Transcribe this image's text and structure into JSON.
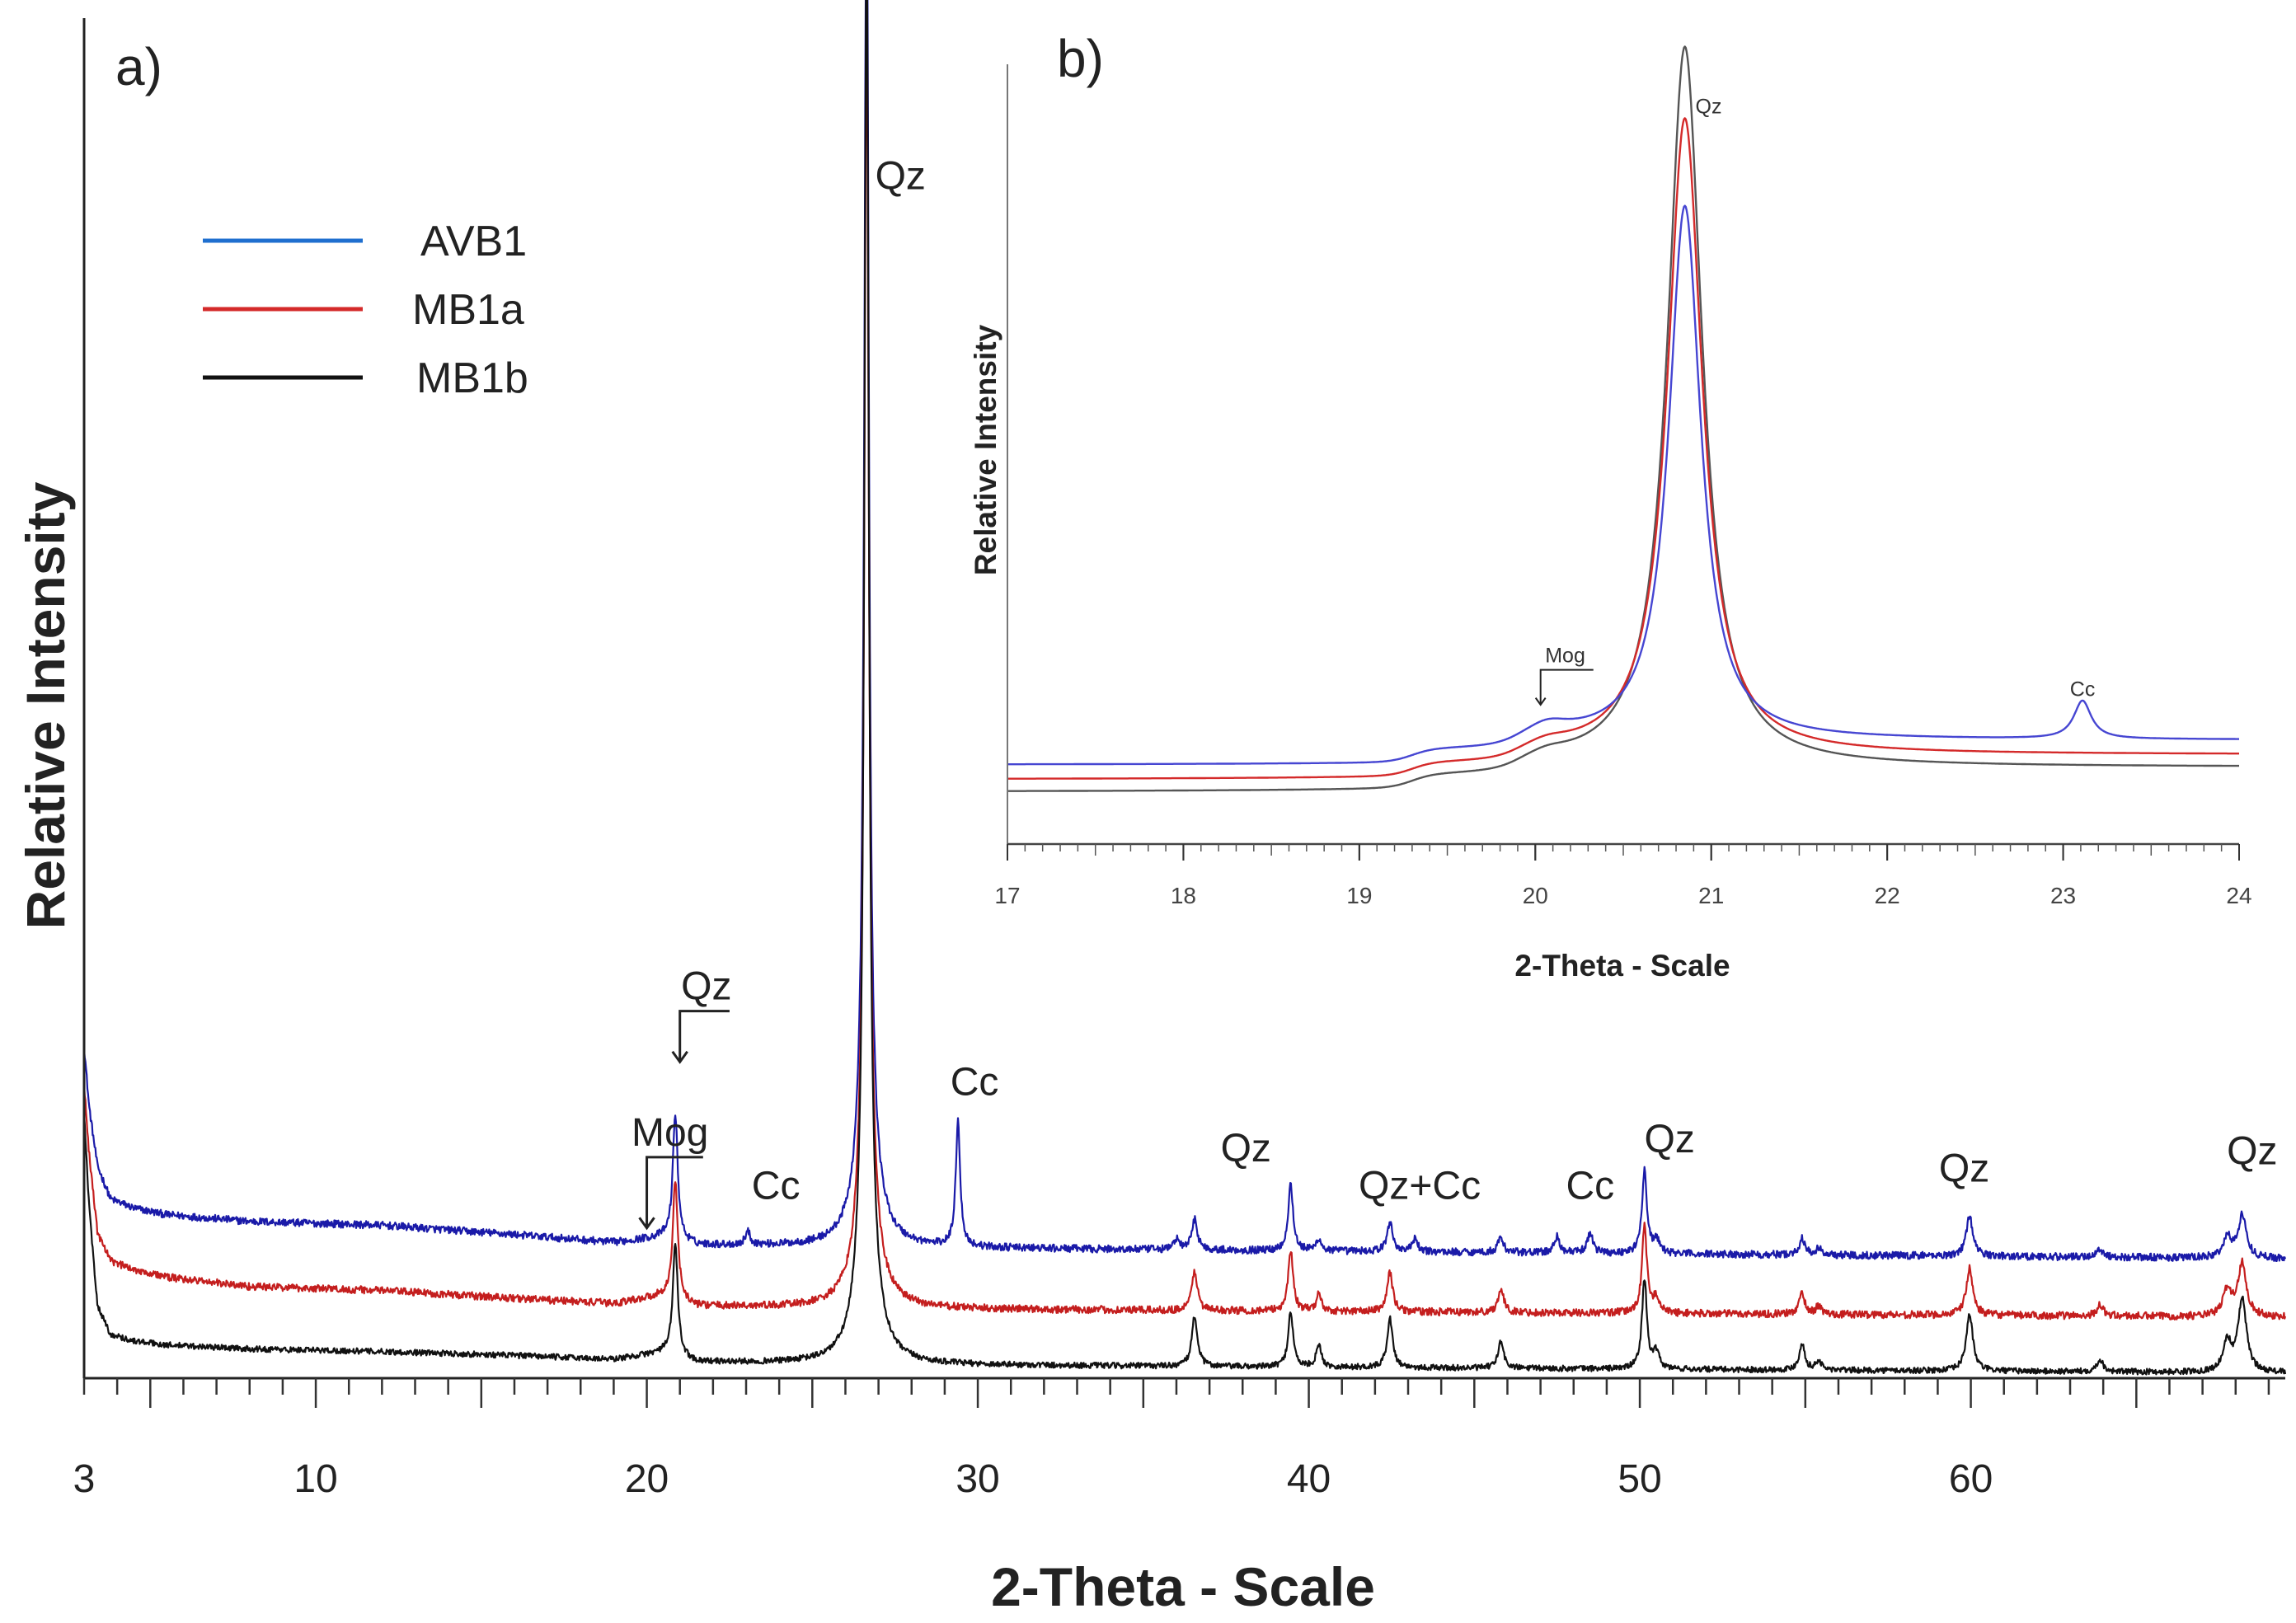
{
  "chart_data": [
    {
      "id": "a",
      "type": "line",
      "panel_label": "a)",
      "xlabel": "2-Theta - Scale",
      "ylabel": "Relative Intensity",
      "xlim": [
        3,
        69.5
      ],
      "ylim": [
        0,
        100
      ],
      "x_ticks": [
        3,
        10,
        20,
        30,
        40,
        50,
        60
      ],
      "legend": [
        {
          "name": "AVB1",
          "color": "#1f6fcf"
        },
        {
          "name": "MB1a",
          "color": "#d42a2a"
        },
        {
          "name": "MB1b",
          "color": "#111111"
        }
      ],
      "series": [
        {
          "name": "AVB1",
          "color": "#1a1aa8",
          "baseline": 9.5,
          "noise": 0.28,
          "base_shape": [
            [
              3,
              25
            ],
            [
              3.15,
              20.5
            ],
            [
              3.4,
              16
            ],
            [
              3.8,
              13.5
            ],
            [
              4.5,
              12.8
            ],
            [
              5.5,
              12.3
            ],
            [
              8,
              11.8
            ],
            [
              12,
              11.5
            ],
            [
              16,
              10.8
            ],
            [
              19,
              10.2
            ],
            [
              20.5,
              10.6
            ],
            [
              21.5,
              10.0
            ],
            [
              28,
              9.8
            ],
            [
              69.5,
              9.0
            ]
          ],
          "peaks": [
            [
              20.86,
              9.5,
              0.09
            ],
            [
              23.05,
              1.0,
              0.09
            ],
            [
              26.64,
              97,
              0.08
            ],
            [
              26.64,
              8,
              0.35
            ],
            [
              29.4,
              9.5,
              0.08
            ],
            [
              36.0,
              0.8,
              0.1
            ],
            [
              36.55,
              2.3,
              0.1
            ],
            [
              39.45,
              5.0,
              0.09
            ],
            [
              40.3,
              0.9,
              0.09
            ],
            [
              42.45,
              2.2,
              0.1
            ],
            [
              43.2,
              0.9,
              0.1
            ],
            [
              45.8,
              1.1,
              0.1
            ],
            [
              47.5,
              1.2,
              0.1
            ],
            [
              48.5,
              1.5,
              0.1
            ],
            [
              50.14,
              6.2,
              0.09
            ],
            [
              50.5,
              1.0,
              0.1
            ],
            [
              54.9,
              1.2,
              0.1
            ],
            [
              55.4,
              0.5,
              0.1
            ],
            [
              59.96,
              3.0,
              0.12
            ],
            [
              63.9,
              0.6,
              0.12
            ],
            [
              67.75,
              1.5,
              0.15
            ],
            [
              68.2,
              3.2,
              0.15
            ]
          ]
        },
        {
          "name": "MB1a",
          "color": "#c41e1e",
          "baseline": 5.0,
          "noise": 0.28,
          "base_shape": [
            [
              3,
              22
            ],
            [
              3.15,
              17
            ],
            [
              3.4,
              11
            ],
            [
              3.8,
              8.8
            ],
            [
              4.5,
              8.2
            ],
            [
              5.5,
              7.6
            ],
            [
              8,
              6.9
            ],
            [
              12,
              6.6
            ],
            [
              16,
              6.0
            ],
            [
              19,
              5.6
            ],
            [
              20.5,
              6.2
            ],
            [
              21.5,
              5.4
            ],
            [
              28,
              5.2
            ],
            [
              69.5,
              4.6
            ]
          ],
          "peaks": [
            [
              20.86,
              9.0,
              0.09
            ],
            [
              26.64,
              90,
              0.08
            ],
            [
              26.64,
              8,
              0.35
            ],
            [
              36.55,
              3.0,
              0.1
            ],
            [
              39.45,
              4.6,
              0.09
            ],
            [
              40.3,
              1.3,
              0.09
            ],
            [
              42.45,
              3.0,
              0.1
            ],
            [
              45.8,
              1.8,
              0.1
            ],
            [
              50.14,
              6.5,
              0.09
            ],
            [
              50.5,
              1.2,
              0.1
            ],
            [
              54.9,
              1.6,
              0.1
            ],
            [
              55.4,
              0.6,
              0.1
            ],
            [
              59.96,
              3.5,
              0.12
            ],
            [
              63.9,
              0.8,
              0.12
            ],
            [
              67.75,
              2.0,
              0.15
            ],
            [
              68.2,
              4.0,
              0.15
            ]
          ]
        },
        {
          "name": "MB1b",
          "color": "#111111",
          "baseline": 0.5,
          "noise": 0.22,
          "base_shape": [
            [
              3,
              20
            ],
            [
              3.15,
              13
            ],
            [
              3.4,
              5.5
            ],
            [
              3.8,
              3.3
            ],
            [
              4.5,
              2.8
            ],
            [
              5.5,
              2.5
            ],
            [
              8,
              2.2
            ],
            [
              12,
              2.0
            ],
            [
              16,
              1.7
            ],
            [
              19,
              1.4
            ],
            [
              20.5,
              1.9
            ],
            [
              21.5,
              1.2
            ],
            [
              28,
              1.0
            ],
            [
              69.5,
              0.4
            ]
          ],
          "peaks": [
            [
              20.86,
              8.5,
              0.09
            ],
            [
              26.64,
              100,
              0.08
            ],
            [
              26.64,
              8,
              0.35
            ],
            [
              36.55,
              3.8,
              0.1
            ],
            [
              39.45,
              4.2,
              0.09
            ],
            [
              40.3,
              1.7,
              0.09
            ],
            [
              42.45,
              3.7,
              0.1
            ],
            [
              45.8,
              2.0,
              0.1
            ],
            [
              50.14,
              6.8,
              0.09
            ],
            [
              50.5,
              1.2,
              0.1
            ],
            [
              54.9,
              2.0,
              0.1
            ],
            [
              55.4,
              0.7,
              0.1
            ],
            [
              59.96,
              4.3,
              0.12
            ],
            [
              63.9,
              0.9,
              0.12
            ],
            [
              67.75,
              2.2,
              0.15
            ],
            [
              68.2,
              5.5,
              0.15
            ]
          ]
        }
      ],
      "annotations": [
        {
          "text": "Qz",
          "x": 26.9,
          "y": 89.5,
          "anchor": "start",
          "kind": "text"
        },
        {
          "text": "Qz",
          "x": 21.8,
          "y": 28.5,
          "anchor": "middle",
          "kind": "bracket",
          "target_x": 21.0,
          "target_y": 23.8,
          "tail_x": 22.5
        },
        {
          "text": "Mog",
          "x": 20.7,
          "y": 17.5,
          "anchor": "middle",
          "kind": "bracket",
          "target_x": 20.0,
          "target_y": 11.3,
          "tail_x": 21.7
        },
        {
          "text": "Cc",
          "x": 23.9,
          "y": 13.5,
          "anchor": "middle",
          "kind": "text"
        },
        {
          "text": "Cc",
          "x": 29.9,
          "y": 21.3,
          "anchor": "middle",
          "kind": "text"
        },
        {
          "text": "Qz",
          "x": 38.1,
          "y": 16.3,
          "anchor": "middle",
          "kind": "text"
        },
        {
          "text": "Qz+Cc",
          "x": 43.35,
          "y": 13.5,
          "anchor": "middle",
          "kind": "text"
        },
        {
          "text": "Cc",
          "x": 48.5,
          "y": 13.5,
          "anchor": "middle",
          "kind": "text"
        },
        {
          "text": "Qz",
          "x": 50.9,
          "y": 17.0,
          "anchor": "middle",
          "kind": "text"
        },
        {
          "text": "Qz",
          "x": 59.8,
          "y": 14.8,
          "anchor": "middle",
          "kind": "text"
        },
        {
          "text": "Qz",
          "x": 68.5,
          "y": 16.1,
          "anchor": "middle",
          "kind": "text"
        }
      ]
    },
    {
      "id": "b",
      "type": "line",
      "panel_label": "b)",
      "xlabel": "2-Theta - Scale",
      "ylabel": "Relative Intensity",
      "xlim": [
        17,
        24
      ],
      "ylim": [
        0,
        100
      ],
      "x_ticks": [
        17,
        18,
        19,
        20,
        21,
        22,
        23,
        24
      ],
      "series": [
        {
          "name": "MB1b",
          "color": "#555555",
          "baseline": 0.5,
          "steps": [
            [
              19.3,
              1.8
            ],
            [
              19.9,
              1.6
            ]
          ],
          "peaks": [
            [
              20.07,
              0.8,
              0.15
            ],
            [
              20.85,
              98.5,
              0.12
            ]
          ]
        },
        {
          "name": "MB1a",
          "color": "#d42a2a",
          "baseline": 2.2,
          "steps": [
            [
              19.3,
              1.8
            ],
            [
              19.9,
              1.6
            ]
          ],
          "peaks": [
            [
              20.07,
              0.8,
              0.15
            ],
            [
              20.85,
              87,
              0.12
            ]
          ]
        },
        {
          "name": "AVB1",
          "color": "#4646d2",
          "baseline": 4.2,
          "steps": [
            [
              19.3,
              1.8
            ],
            [
              19.9,
              1.6
            ]
          ],
          "peaks": [
            [
              20.07,
              1.5,
              0.15
            ],
            [
              20.85,
              73,
              0.11
            ],
            [
              23.11,
              5.2,
              0.06
            ]
          ]
        }
      ],
      "annotations": [
        {
          "text": "Qz",
          "x": 20.91,
          "y": 93.3,
          "anchor": "start",
          "kind": "text"
        },
        {
          "text": "Cc",
          "x": 23.11,
          "y": 13.6,
          "anchor": "middle",
          "kind": "text"
        },
        {
          "text": "Mog",
          "x": 20.17,
          "y": 18.2,
          "anchor": "middle",
          "kind": "bracket",
          "target_x": 20.03,
          "target_y": 12.4,
          "tail_x": 20.33
        }
      ]
    }
  ]
}
